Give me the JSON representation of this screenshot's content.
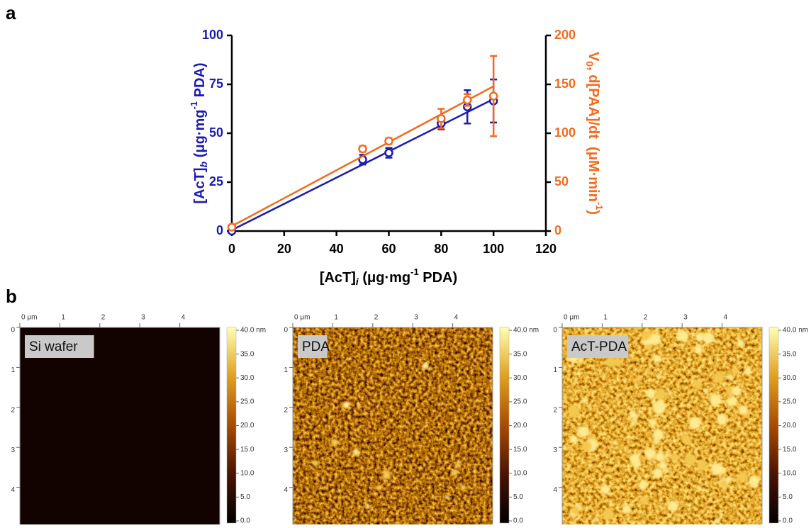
{
  "panel_labels": [
    "a",
    "b"
  ],
  "chart_data": {
    "type": "scatter",
    "x": [
      0,
      50,
      60,
      80,
      90,
      100
    ],
    "xlim": [
      0,
      120
    ],
    "xticks": [
      0,
      20,
      40,
      60,
      80,
      100,
      120
    ],
    "ylim": [
      0,
      100
    ],
    "yticks": [
      0,
      25,
      50,
      75,
      100
    ],
    "y2lim": [
      0,
      200
    ],
    "y2ticks": [
      0,
      50,
      100,
      150,
      200
    ],
    "xlabel": [
      "[AcT]",
      "i",
      " (μg·mg",
      "-1",
      " PDA)"
    ],
    "ylabel": [
      "[AcT]",
      "b",
      " (μg·mg",
      "-1",
      " PDA)"
    ],
    "y2label": [
      "V",
      "0",
      ", d[PAA]/dt  (μM·min",
      "-1",
      ")"
    ],
    "series": [
      {
        "color": "#1c1cae",
        "values": [
          0,
          36.5,
          40,
          55,
          63.5,
          66.5
        ],
        "errors": [
          0.5,
          2.5,
          2.5,
          3,
          8.5,
          11
        ],
        "fit": {
          "x": [
            0,
            100
          ],
          "values": [
            0.5,
            67.5
          ]
        }
      },
      {
        "color": "#f26b1d",
        "axis": "y2",
        "values": [
          4,
          84,
          92,
          115,
          134,
          138
        ],
        "errors": [
          2,
          3,
          3,
          10,
          6,
          41
        ],
        "fit": {
          "x": [
            0,
            100
          ],
          "values": [
            5,
            148
          ]
        }
      }
    ]
  },
  "afm": {
    "xlim": [
      0,
      5
    ],
    "xticks": [
      {
        "value": 0,
        "label": "0 μm"
      },
      1,
      2,
      3,
      4
    ],
    "yticks": [
      0,
      1,
      2,
      3,
      4
    ],
    "colorbar": {
      "lim": [
        0,
        40
      ],
      "ticks": [
        {
          "value": 40,
          "label": "40.0 nm"
        },
        {
          "value": 35,
          "label": "35.0"
        },
        {
          "value": 30,
          "label": "30.0"
        },
        {
          "value": 25,
          "label": "25.0"
        },
        {
          "value": 20,
          "label": "20.0"
        },
        {
          "value": 15,
          "label": "15.0"
        },
        {
          "value": 10,
          "label": "10.0"
        },
        {
          "value": 5,
          "label": "5.0"
        },
        {
          "value": 0,
          "label": "0.0"
        }
      ]
    },
    "images": [
      {
        "label": "Si wafer"
      },
      {
        "label": "PDA"
      },
      {
        "label": "AcT-PDA"
      }
    ]
  }
}
